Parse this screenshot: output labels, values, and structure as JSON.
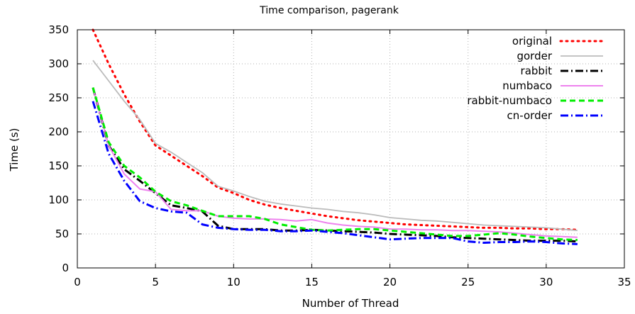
{
  "chart_data": {
    "type": "line",
    "title": "Time comparison, pagerank",
    "xlabel": "Number of Thread",
    "ylabel": "Time (s)",
    "xlim": [
      0,
      35
    ],
    "ylim": [
      0,
      350
    ],
    "xticks": [
      0,
      5,
      10,
      15,
      20,
      25,
      30,
      35
    ],
    "yticks": [
      0,
      50,
      100,
      150,
      200,
      250,
      300,
      350
    ],
    "grid": true,
    "legend_position": "top-right",
    "x": [
      1,
      2,
      3,
      4,
      5,
      6,
      7,
      8,
      9,
      10,
      11,
      12,
      13,
      14,
      15,
      16,
      17,
      18,
      19,
      20,
      21,
      22,
      23,
      24,
      25,
      26,
      27,
      28,
      29,
      30,
      31,
      32
    ],
    "series": [
      {
        "name": "original",
        "color": "#ff0000",
        "style": "dotted",
        "values": [
          350,
          300,
          255,
          215,
          180,
          165,
          150,
          135,
          118,
          110,
          100,
          93,
          88,
          84,
          80,
          76,
          73,
          70,
          68,
          66,
          64,
          63,
          62,
          61,
          60,
          59,
          59,
          58,
          58,
          57,
          57,
          56
        ]
      },
      {
        "name": "gorder",
        "color": "#bbbbbb",
        "style": "solid",
        "values": [
          305,
          275,
          245,
          218,
          183,
          170,
          155,
          140,
          120,
          113,
          105,
          98,
          94,
          91,
          88,
          86,
          83,
          81,
          78,
          74,
          72,
          70,
          69,
          67,
          65,
          63,
          62,
          61,
          60,
          59,
          57,
          55
        ]
      },
      {
        "name": "rabbit",
        "color": "#000000",
        "style": "dashdot",
        "values": [
          265,
          180,
          145,
          128,
          110,
          92,
          88,
          83,
          62,
          57,
          57,
          57,
          55,
          55,
          56,
          55,
          54,
          53,
          52,
          50,
          49,
          48,
          47,
          45,
          44,
          43,
          42,
          41,
          40,
          40,
          40,
          39
        ]
      },
      {
        "name": "numbaco",
        "color": "#ee82ee",
        "style": "solid",
        "values": [
          265,
          180,
          138,
          116,
          112,
          86,
          84,
          84,
          76,
          73,
          72,
          72,
          71,
          69,
          71,
          66,
          63,
          61,
          60,
          57,
          57,
          56,
          56,
          55,
          55,
          54,
          53,
          51,
          49,
          47,
          46,
          45
        ]
      },
      {
        "name": "rabbit-numbaco",
        "color": "#00ee00",
        "style": "dashed",
        "values": [
          265,
          185,
          150,
          133,
          112,
          98,
          92,
          84,
          76,
          76,
          76,
          72,
          64,
          60,
          56,
          55,
          56,
          57,
          57,
          55,
          53,
          51,
          49,
          47,
          47,
          49,
          51,
          49,
          46,
          44,
          42,
          41
        ]
      },
      {
        "name": "cn-order",
        "color": "#0000ff",
        "style": "dashdot",
        "values": [
          245,
          168,
          128,
          98,
          88,
          83,
          81,
          64,
          59,
          57,
          56,
          56,
          54,
          54,
          55,
          53,
          51,
          48,
          45,
          42,
          43,
          44,
          44,
          44,
          39,
          37,
          38,
          38,
          39,
          38,
          36,
          35
        ]
      }
    ]
  }
}
